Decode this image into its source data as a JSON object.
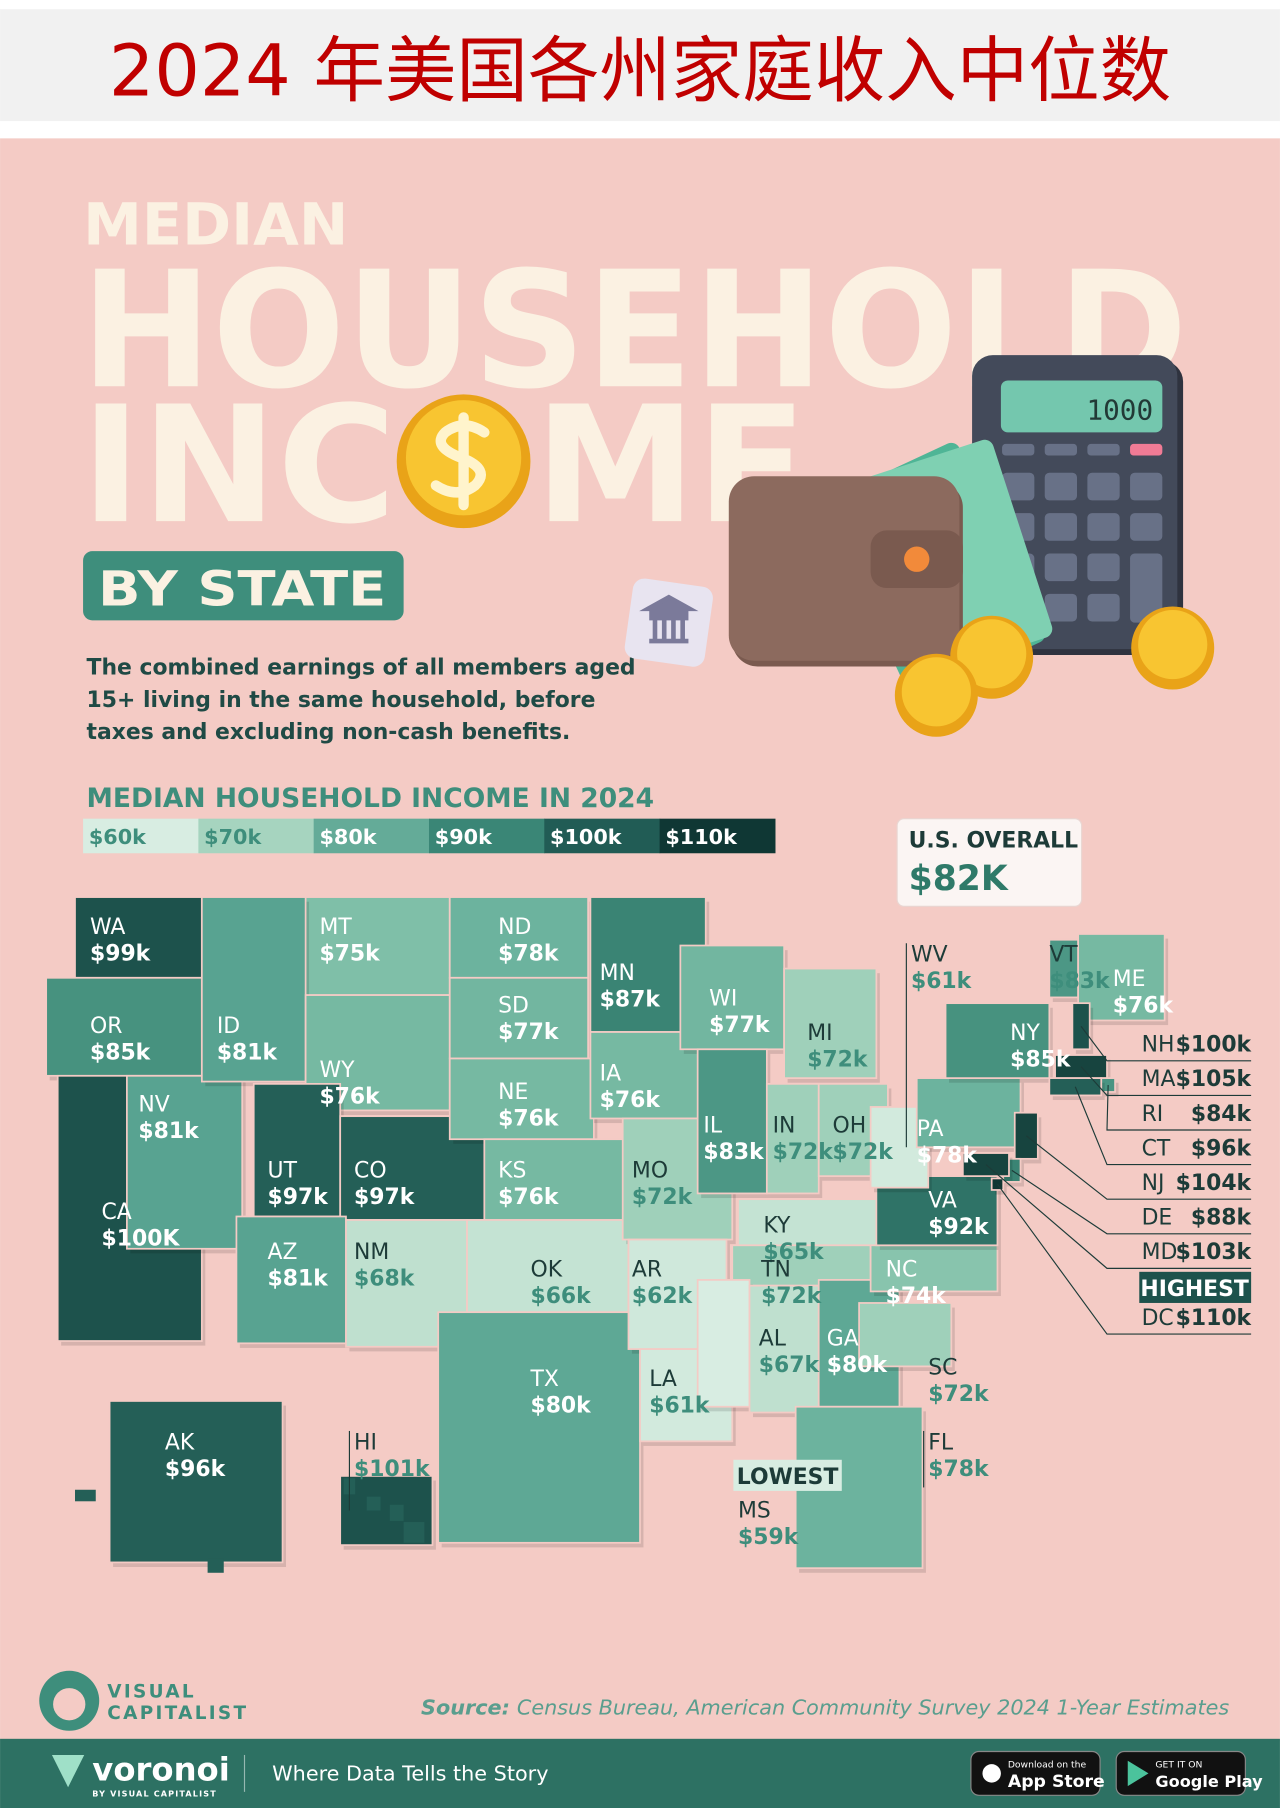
{
  "header": {
    "title": "2024 年美国各州家庭收入中位数"
  },
  "infographic": {
    "title_line1": "MEDIAN",
    "title_line2": "HOUSEHOLD",
    "title_line3": "INCOME",
    "badge": "BY STATE",
    "description": [
      "The combined earnings of all members aged",
      "15+ living in the same household, before",
      "taxes and excluding non-cash benefits."
    ],
    "calculator_display": "1000"
  },
  "legend": {
    "title": "MEDIAN HOUSEHOLD INCOME IN 2024",
    "labels": [
      "$60k",
      "$70k",
      "$80k",
      "$90k",
      "$100k",
      "$110k"
    ],
    "colors": [
      "#d8ede2",
      "#a6d4bf",
      "#64ab98",
      "#3a8676",
      "#215c55",
      "#0f3734"
    ]
  },
  "us_overall": {
    "label": "U.S. OVERALL",
    "value": "$82K"
  },
  "map": {
    "highest_label": "HIGHEST",
    "lowest_label": "LOWEST",
    "states": [
      {
        "abbr": "WA",
        "value": "$99k",
        "color": "#1d524c"
      },
      {
        "abbr": "OR",
        "value": "$85k",
        "color": "#47927f"
      },
      {
        "abbr": "CA",
        "value": "$100K",
        "color": "#1d524c"
      },
      {
        "abbr": "NV",
        "value": "$81k",
        "color": "#58a391"
      },
      {
        "abbr": "MT",
        "value": "$75k",
        "color": "#7fbfa8"
      },
      {
        "abbr": "ID",
        "value": "$81k",
        "color": "#58a391"
      },
      {
        "abbr": "WY",
        "value": "$76k",
        "color": "#76b9a2"
      },
      {
        "abbr": "UT",
        "value": "$97k",
        "color": "#245f57"
      },
      {
        "abbr": "CO",
        "value": "$97k",
        "color": "#245f57"
      },
      {
        "abbr": "AZ",
        "value": "$81k",
        "color": "#58a391"
      },
      {
        "abbr": "NM",
        "value": "$68k",
        "color": "#bfe0cf"
      },
      {
        "abbr": "ND",
        "value": "$78k",
        "color": "#6cb39e"
      },
      {
        "abbr": "SD",
        "value": "$77k",
        "color": "#72b6a0"
      },
      {
        "abbr": "NE",
        "value": "$76k",
        "color": "#76b9a2"
      },
      {
        "abbr": "KS",
        "value": "$76k",
        "color": "#76b9a2"
      },
      {
        "abbr": "OK",
        "value": "$66k",
        "color": "#c4e3d3"
      },
      {
        "abbr": "TX",
        "value": "$80k",
        "color": "#5ea895"
      },
      {
        "abbr": "MN",
        "value": "$87k",
        "color": "#3a8474"
      },
      {
        "abbr": "IA",
        "value": "$76k",
        "color": "#76b9a2"
      },
      {
        "abbr": "MO",
        "value": "$72k",
        "color": "#9fd0ba"
      },
      {
        "abbr": "AR",
        "value": "$62k",
        "color": "#cfe8db"
      },
      {
        "abbr": "LA",
        "value": "$61k",
        "color": "#d2eadd"
      },
      {
        "abbr": "WI",
        "value": "$77k",
        "color": "#72b6a0"
      },
      {
        "abbr": "IL",
        "value": "$83k",
        "color": "#4c9785"
      },
      {
        "abbr": "MI",
        "value": "$72k",
        "color": "#9fd0ba"
      },
      {
        "abbr": "IN",
        "value": "$72k",
        "color": "#9fd0ba"
      },
      {
        "abbr": "OH",
        "value": "$72k",
        "color": "#9fd0ba"
      },
      {
        "abbr": "KY",
        "value": "$65k",
        "color": "#c4e3d3"
      },
      {
        "abbr": "TN",
        "value": "$72k",
        "color": "#9fd0ba"
      },
      {
        "abbr": "MS",
        "value": "$59k",
        "color": "#d8ede2"
      },
      {
        "abbr": "AL",
        "value": "$67k",
        "color": "#bfe0cf"
      },
      {
        "abbr": "GA",
        "value": "$80k",
        "color": "#5ea895"
      },
      {
        "abbr": "FL",
        "value": "$78k",
        "color": "#6cb39e"
      },
      {
        "abbr": "SC",
        "value": "$72k",
        "color": "#9fd0ba"
      },
      {
        "abbr": "NC",
        "value": "$74k",
        "color": "#88c4ad"
      },
      {
        "abbr": "VA",
        "value": "$92k",
        "color": "#2f7367"
      },
      {
        "abbr": "WV",
        "value": "$61k",
        "color": "#d2eadd"
      },
      {
        "abbr": "PA",
        "value": "$78k",
        "color": "#6cb39e"
      },
      {
        "abbr": "NY",
        "value": "$85k",
        "color": "#47927f"
      },
      {
        "abbr": "VT",
        "value": "$83k",
        "color": "#4c9785"
      },
      {
        "abbr": "ME",
        "value": "$76k",
        "color": "#76b9a2"
      },
      {
        "abbr": "NH",
        "value": "$100k",
        "color": "#1d524c"
      },
      {
        "abbr": "MA",
        "value": "$105k",
        "color": "#17443f"
      },
      {
        "abbr": "RI",
        "value": "$84k",
        "color": "#4a9482"
      },
      {
        "abbr": "CT",
        "value": "$96k",
        "color": "#245f57"
      },
      {
        "abbr": "NJ",
        "value": "$104k",
        "color": "#17443f"
      },
      {
        "abbr": "DE",
        "value": "$88k",
        "color": "#3a8474"
      },
      {
        "abbr": "MD",
        "value": "$103k",
        "color": "#17443f"
      },
      {
        "abbr": "DC",
        "value": "$110k",
        "color": "#103733"
      },
      {
        "abbr": "AK",
        "value": "$96k",
        "color": "#245f57"
      },
      {
        "abbr": "HI",
        "value": "$101k",
        "color": "#1d524c"
      }
    ]
  },
  "source": {
    "prefix": "Source:",
    "text": "Census Bureau, American Community Survey 2024 1-Year Estimates"
  },
  "footer": {
    "logo_line1": "VISUAL",
    "logo_line2": "CAPITALIST",
    "brand": "voronoi",
    "brand_sub": "BY VISUAL CAPITALIST",
    "tagline": "Where Data Tells the Story",
    "app_store": [
      "Download on the",
      "App Store"
    ],
    "google_play": [
      "GET IT ON",
      "Google Play"
    ]
  }
}
